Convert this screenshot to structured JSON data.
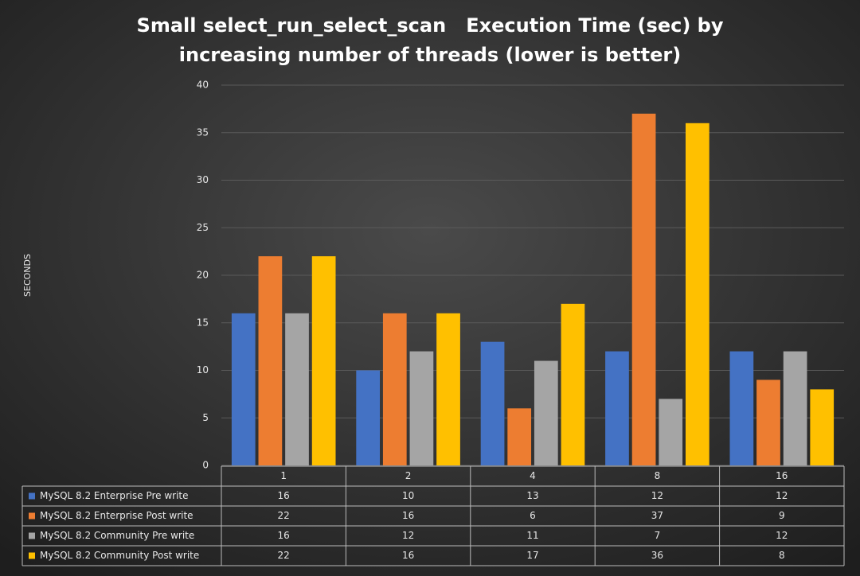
{
  "chart_data": {
    "type": "bar",
    "title": [
      "Small select_run_select_scan   Execution Time (sec) by",
      "increasing number of threads (lower is better)"
    ],
    "y_label": "SECONDS",
    "categories": [
      "1",
      "2",
      "4",
      "8",
      "16"
    ],
    "series": [
      {
        "name": "MySQL 8.2 Enterprise Pre write",
        "color": "#4472c4",
        "values": [
          16,
          10,
          13,
          12,
          12
        ]
      },
      {
        "name": "MySQL 8.2 Enterprise Post write",
        "color": "#ed7d31",
        "values": [
          22,
          16,
          6,
          37,
          9
        ]
      },
      {
        "name": "MySQL 8.2 Community Pre write",
        "color": "#a5a5a5",
        "values": [
          16,
          12,
          11,
          7,
          12
        ]
      },
      {
        "name": "MySQL 8.2 Community Post write",
        "color": "#ffc000",
        "values": [
          22,
          16,
          17,
          36,
          8
        ]
      }
    ],
    "ylim": [
      0,
      40
    ],
    "yticks": [
      0,
      5,
      10,
      15,
      20,
      25,
      30,
      35,
      40
    ],
    "grid": true
  }
}
